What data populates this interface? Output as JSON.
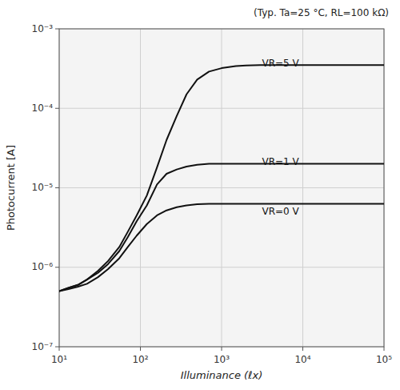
{
  "chart_data": {
    "type": "line",
    "xlabel": "Illuminance (ℓx)",
    "ylabel": "Photocurrent [A]",
    "log": true,
    "grid": true,
    "xlim": [
      10,
      100000
    ],
    "ylim": [
      1e-07,
      0.001
    ],
    "xticks": [
      {
        "value": 10,
        "label": "10¹"
      },
      {
        "value": 100,
        "label": "10²"
      },
      {
        "value": 1000,
        "label": "10³"
      },
      {
        "value": 10000,
        "label": "10⁴"
      },
      {
        "value": 100000,
        "label": "10⁵"
      }
    ],
    "yticks": [
      {
        "value": 1e-07,
        "label": "10⁻⁷"
      },
      {
        "value": 1e-06,
        "label": "10⁻⁶"
      },
      {
        "value": 1e-05,
        "label": "10⁻⁵"
      },
      {
        "value": 0.0001,
        "label": "10⁻⁴"
      },
      {
        "value": 0.001,
        "label": "10⁻³"
      }
    ],
    "x": [
      10,
      13,
      17,
      22,
      30,
      40,
      55,
      70,
      90,
      120,
      160,
      210,
      280,
      370,
      500,
      700,
      1000,
      1500,
      2000,
      3000,
      5000,
      10000,
      30000,
      100000
    ],
    "series": [
      {
        "color": "#111111",
        "values": [
          5e-07,
          5.5e-07,
          6e-07,
          7e-07,
          9e-07,
          1.2e-06,
          1.8e-06,
          2.8e-06,
          4.5e-06,
          8e-06,
          1.8e-05,
          4e-05,
          8e-05,
          0.00015,
          0.00023,
          0.00029,
          0.00032,
          0.00034,
          0.000345,
          0.00035,
          0.00035,
          0.00035,
          0.00035,
          0.00035
        ]
      },
      {
        "color": "#111111",
        "values": [
          5e-07,
          5.5e-07,
          6e-07,
          7e-07,
          8.5e-07,
          1.1e-06,
          1.6e-06,
          2.4e-06,
          3.8e-06,
          6e-06,
          1.1e-05,
          1.5e-05,
          1.7e-05,
          1.85e-05,
          1.95e-05,
          2e-05,
          2e-05,
          2e-05,
          2e-05,
          2e-05,
          2e-05,
          2e-05,
          2e-05,
          2e-05
        ]
      },
      {
        "color": "#111111",
        "values": [
          5e-07,
          5.3e-07,
          5.7e-07,
          6.2e-07,
          7.5e-07,
          9.5e-07,
          1.3e-06,
          1.8e-06,
          2.5e-06,
          3.5e-06,
          4.5e-06,
          5.2e-06,
          5.7e-06,
          6e-06,
          6.2e-06,
          6.3e-06,
          6.3e-06,
          6.3e-06,
          6.3e-06,
          6.3e-06,
          6.3e-06,
          6.3e-06,
          6.3e-06,
          6.3e-06
        ]
      }
    ],
    "annotations": [
      {
        "text": "(Typ. Ta=25 °C, RL=100 kΩ)"
      },
      {
        "text": "VR=5 V",
        "x": 3000,
        "y": 0.000365
      },
      {
        "text": "VR=1 V",
        "x": 3000,
        "y": 2.1e-05
      },
      {
        "text": "VR=0 V",
        "x": 3000,
        "y": 5e-06
      }
    ]
  }
}
